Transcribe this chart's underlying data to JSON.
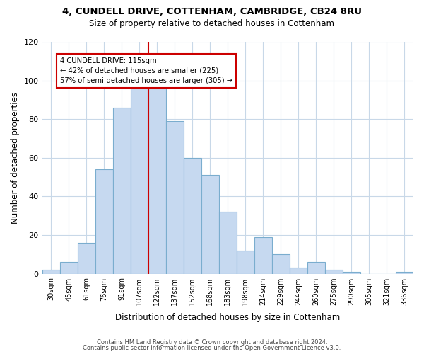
{
  "title_line1": "4, CUNDELL DRIVE, COTTENHAM, CAMBRIDGE, CB24 8RU",
  "title_line2": "Size of property relative to detached houses in Cottenham",
  "xlabel": "Distribution of detached houses by size in Cottenham",
  "ylabel": "Number of detached properties",
  "bar_labels": [
    "30sqm",
    "45sqm",
    "61sqm",
    "76sqm",
    "91sqm",
    "107sqm",
    "122sqm",
    "137sqm",
    "152sqm",
    "168sqm",
    "183sqm",
    "198sqm",
    "214sqm",
    "229sqm",
    "244sqm",
    "260sqm",
    "275sqm",
    "290sqm",
    "305sqm",
    "321sqm",
    "336sqm"
  ],
  "bar_values": [
    2,
    6,
    16,
    54,
    86,
    98,
    98,
    79,
    60,
    51,
    32,
    12,
    19,
    10,
    3,
    6,
    2,
    1,
    0,
    0,
    1
  ],
  "bar_color": "#c6d9f0",
  "bar_edge_color": "#7aadce",
  "vline_x": 6.0,
  "vline_color": "#cc0000",
  "annotation_title": "4 CUNDELL DRIVE: 115sqm",
  "annotation_line1": "← 42% of detached houses are smaller (225)",
  "annotation_line2": "57% of semi-detached houses are larger (305) →",
  "annotation_box_color": "#ffffff",
  "annotation_box_edge_color": "#cc0000",
  "ylim": [
    0,
    120
  ],
  "yticks": [
    0,
    20,
    40,
    60,
    80,
    100,
    120
  ],
  "footer_line1": "Contains HM Land Registry data © Crown copyright and database right 2024.",
  "footer_line2": "Contains public sector information licensed under the Open Government Licence v3.0.",
  "background_color": "#ffffff",
  "grid_color": "#c8d8e8"
}
